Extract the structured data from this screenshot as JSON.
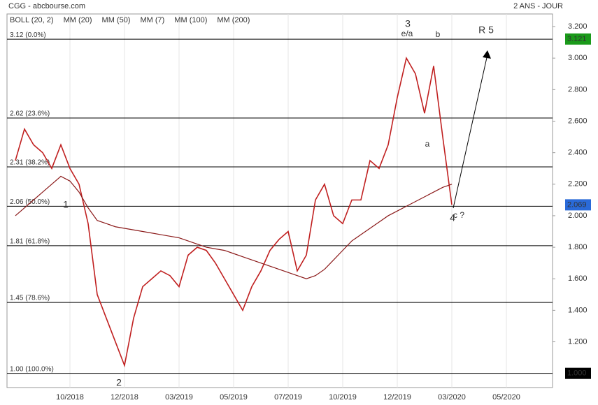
{
  "chart_data": {
    "type": "line",
    "title": "CGG - abcbourse.com",
    "subtitle": "2 ANS - JOUR",
    "legend": [
      {
        "name": "BOLL (20, 2)",
        "color": "#333333"
      },
      {
        "name": "MM (20)",
        "color": "#3b6fd8"
      },
      {
        "name": "MM (50)",
        "color": "#d42a2a"
      },
      {
        "name": "MM (7)",
        "color": "#1a9a1a"
      },
      {
        "name": "MM (100)",
        "color": "#f07a1a"
      },
      {
        "name": "MM (200)",
        "color": "#8b1a1a"
      }
    ],
    "categories": [
      null,
      null,
      null,
      null,
      null,
      null,
      "10/2018",
      null,
      null,
      null,
      null,
      null,
      "12/2018",
      null,
      null,
      null,
      null,
      null,
      "03/2019",
      null,
      null,
      null,
      null,
      null,
      "05/2019",
      null,
      null,
      null,
      null,
      null,
      "07/2019",
      null,
      null,
      null,
      null,
      null,
      "10/2019",
      null,
      null,
      null,
      null,
      null,
      "12/2019",
      null,
      null,
      null,
      null,
      null,
      "03/2020",
      null,
      null,
      null,
      null,
      null,
      "05/2020",
      null,
      null,
      null,
      null,
      null
    ],
    "series": [
      {
        "name": "CGG",
        "color": "#c02020",
        "values": [
          2.35,
          2.55,
          2.45,
          2.4,
          2.3,
          2.45,
          2.3,
          2.2,
          1.95,
          1.5,
          1.35,
          1.2,
          1.05,
          1.35,
          1.55,
          1.6,
          1.65,
          1.62,
          1.55,
          1.75,
          1.8,
          1.78,
          1.7,
          1.6,
          1.5,
          1.4,
          1.55,
          1.65,
          1.78,
          1.85,
          1.9,
          1.65,
          1.75,
          2.1,
          2.2,
          2.0,
          1.95,
          2.1,
          2.1,
          2.35,
          2.3,
          2.45,
          2.75,
          3.0,
          2.9,
          2.65,
          2.95,
          2.5,
          2.069,
          null,
          null,
          null,
          null,
          null,
          null,
          null,
          null,
          null,
          null,
          null
        ]
      },
      {
        "name": "MM (200)",
        "color": "#8b1a1a",
        "values": [
          2.0,
          2.05,
          2.1,
          2.15,
          2.2,
          2.25,
          2.22,
          2.15,
          2.05,
          1.97,
          1.95,
          1.93,
          1.92,
          1.91,
          1.9,
          1.89,
          1.88,
          1.87,
          1.86,
          1.84,
          1.82,
          1.8,
          1.79,
          1.78,
          1.76,
          1.74,
          1.72,
          1.7,
          1.68,
          1.66,
          1.64,
          1.62,
          1.6,
          1.62,
          1.66,
          1.72,
          1.78,
          1.84,
          1.88,
          1.92,
          1.96,
          2.0,
          2.03,
          2.06,
          2.09,
          2.12,
          2.15,
          2.18,
          2.2,
          null,
          null,
          null,
          null,
          null,
          null,
          null,
          null,
          null,
          null,
          null
        ]
      }
    ],
    "ylim": [
      0.91,
      3.28
    ],
    "yticks": [
      {
        "value": 1.2,
        "label": "1.200"
      },
      {
        "value": 1.4,
        "label": "1.400"
      },
      {
        "value": 1.6,
        "label": "1.600"
      },
      {
        "value": 1.8,
        "label": "1.800"
      },
      {
        "value": 2.0,
        "label": "2.000"
      },
      {
        "value": 2.2,
        "label": "2.200"
      },
      {
        "value": 2.4,
        "label": "2.400"
      },
      {
        "value": 2.6,
        "label": "2.600"
      },
      {
        "value": 2.8,
        "label": "2.800"
      },
      {
        "value": 3.0,
        "label": "3.000"
      },
      {
        "value": 3.2,
        "label": "3.200"
      }
    ],
    "fib_levels": [
      {
        "value": 3.12,
        "label": "3.12  (0.0%)"
      },
      {
        "value": 2.62,
        "label": "2.62  (23.6%)"
      },
      {
        "value": 2.31,
        "label": "2.31  (38.2%)"
      },
      {
        "value": 2.06,
        "label": "2.06  (50.0%)"
      },
      {
        "value": 1.81,
        "label": "1.81  (61.8%)"
      },
      {
        "value": 1.45,
        "label": "1.45  (78.6%)"
      },
      {
        "value": 1.0,
        "label": "1.00  (100.0%)"
      }
    ],
    "price_flags": [
      {
        "value": 3.121,
        "label": "3.121",
        "color": "#1a9a1a"
      },
      {
        "value": 2.069,
        "label": "2.069",
        "color": "#2a6ad8"
      },
      {
        "value": 1.0,
        "label": "1.000",
        "color": "#000000"
      }
    ],
    "annotations": [
      "1",
      "2",
      "3",
      "e/a",
      "b",
      "a",
      "4",
      "c ?",
      "R 5"
    ],
    "grid": true
  }
}
